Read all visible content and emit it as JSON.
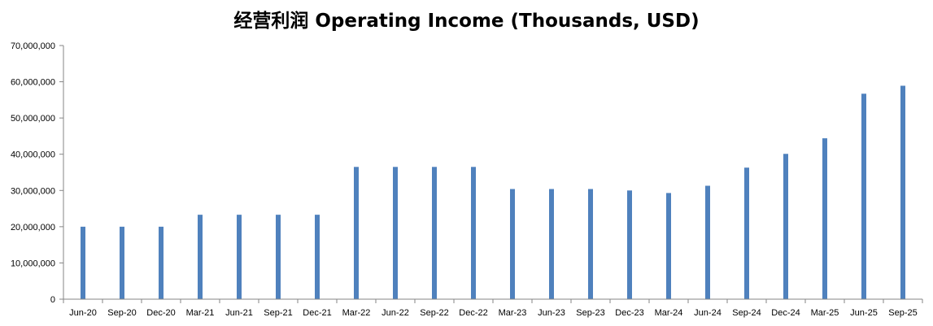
{
  "chart_data": {
    "type": "bar",
    "title": "经营利润 Operating Income (Thousands, USD)",
    "xlabel": "",
    "ylabel": "",
    "ylim": [
      0,
      70000000
    ],
    "yticks": [
      "0",
      "10,000,000",
      "20,000,000",
      "30,000,000",
      "40,000,000",
      "50,000,000",
      "60,000,000",
      "70,000,000"
    ],
    "ytick_values": [
      0,
      10000000,
      20000000,
      30000000,
      40000000,
      50000000,
      60000000,
      70000000
    ],
    "grid": false,
    "legend": "none",
    "bar_color": "#4f81bd",
    "categories": [
      "Jun-20",
      "Sep-20",
      "Dec-20",
      "Mar-21",
      "Jun-21",
      "Sep-21",
      "Dec-21",
      "Mar-22",
      "Jun-22",
      "Sep-22",
      "Dec-22",
      "Mar-23",
      "Jun-23",
      "Sep-23",
      "Dec-23",
      "Mar-24",
      "Jun-24",
      "Sep-24",
      "Dec-24",
      "Mar-25",
      "Jun-25",
      "Sep-25"
    ],
    "values": [
      20000000,
      20000000,
      20000000,
      23300000,
      23300000,
      23300000,
      23300000,
      36500000,
      36500000,
      36500000,
      36500000,
      30400000,
      30400000,
      30400000,
      30000000,
      29300000,
      31300000,
      36300000,
      40100000,
      44400000,
      56700000,
      58900000
    ]
  }
}
